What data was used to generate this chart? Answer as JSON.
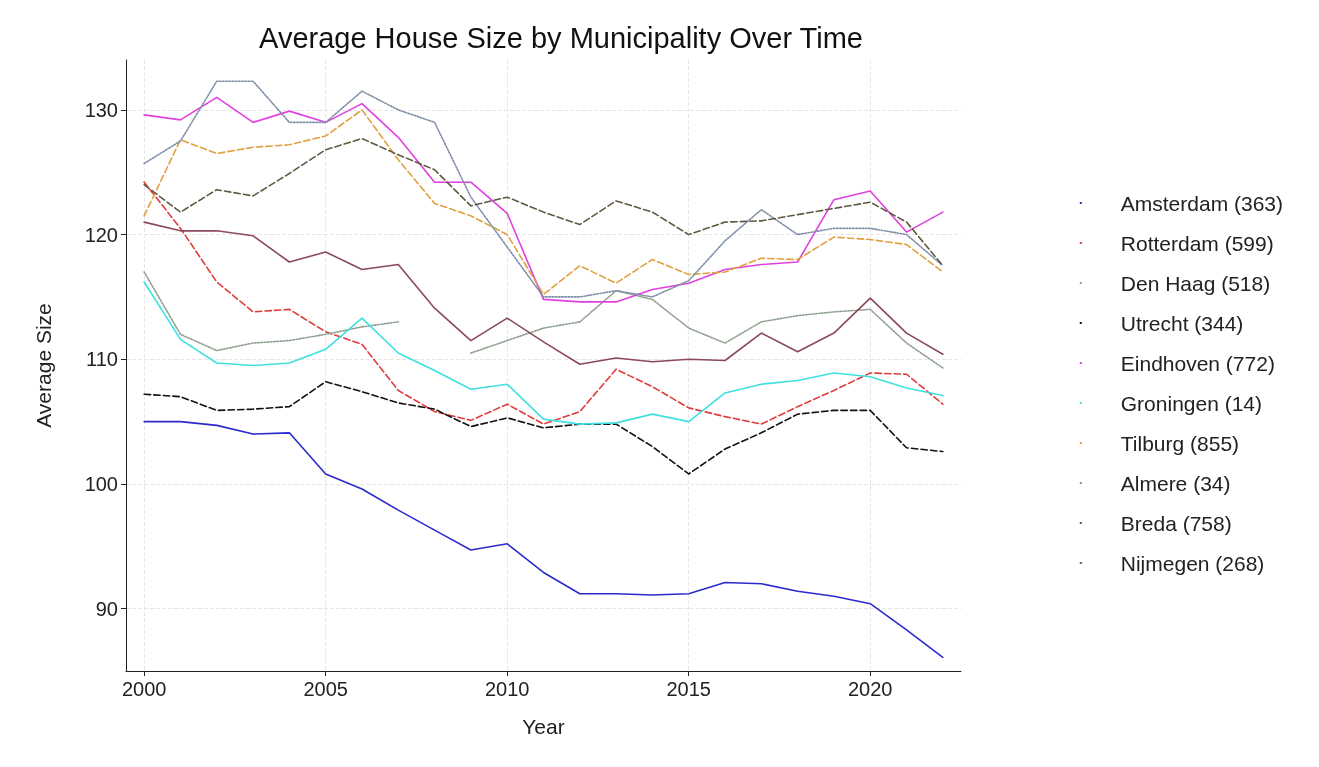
{
  "chart_data": {
    "type": "line",
    "title": "Average House Size by Municipality Over Time",
    "xlabel": "Year",
    "ylabel": "Average Size",
    "x": [
      2000,
      2001,
      2002,
      2003,
      2004,
      2005,
      2006,
      2007,
      2008,
      2009,
      2010,
      2011,
      2012,
      2013,
      2014,
      2015,
      2016,
      2017,
      2018,
      2019,
      2020,
      2021,
      2022
    ],
    "xlim": [
      1999.5,
      2022.5
    ],
    "xticks": [
      2000,
      2005,
      2010,
      2015,
      2020
    ],
    "ylim": [
      85,
      134
    ],
    "yticks": [
      90,
      100,
      110,
      120,
      130
    ],
    "grid": true,
    "legend": "right",
    "marker": "none",
    "series": [
      {
        "name": "Amsterdam (363)",
        "color": "#2b2bcc",
        "line_style": "solid",
        "values": [
          105,
          105,
          104.7,
          104,
          104.1,
          100.8,
          99.6,
          97.9,
          96.3,
          94.7,
          95.2,
          92.9,
          91.2,
          91.2,
          91.1,
          91.2,
          92.1,
          92,
          91.4,
          91,
          90.4,
          88.3,
          86.1
        ]
      },
      {
        "name": "Rotterdam (599)",
        "color": "#e03c3c",
        "line_style": "dashed",
        "values": [
          124.2,
          120.5,
          116.2,
          113.8,
          114,
          112.2,
          111.2,
          107.5,
          105.8,
          105.1,
          106.4,
          104.8,
          105.8,
          109.2,
          107.8,
          106.1,
          105.4,
          104.8,
          106.2,
          107.5,
          108.9,
          108.8,
          106.4
        ]
      },
      {
        "name": "Den Haag (518)",
        "color": "#8fa08f",
        "line_style": "dotted",
        "values": [
          117,
          112,
          110.7,
          111.3,
          111.5,
          112,
          112.6,
          113,
          null,
          110.5,
          111.5,
          112.5,
          113,
          115.5,
          114.8,
          112.5,
          111.3,
          113,
          113.5,
          113.8,
          114,
          111.3,
          109.3
        ]
      },
      {
        "name": "Utrecht (344)",
        "color": "#111111",
        "line_style": "dashed",
        "values": [
          107.2,
          107,
          105.9,
          106,
          106.2,
          108.2,
          107.4,
          106.5,
          106,
          104.6,
          105.3,
          104.5,
          104.8,
          104.8,
          103,
          100.8,
          102.8,
          104.1,
          105.6,
          105.9,
          105.9,
          102.9,
          102.6
        ]
      },
      {
        "name": "Eindhoven (772)",
        "color": "#e040e0",
        "line_style": "solid",
        "values": [
          129.6,
          129.2,
          131,
          129,
          129.9,
          129,
          130.5,
          127.8,
          124.2,
          124.2,
          121.7,
          114.8,
          114.6,
          114.6,
          115.6,
          116.1,
          117.2,
          117.6,
          117.8,
          122.8,
          123.5,
          120.2,
          121.8
        ]
      },
      {
        "name": "Groningen (14)",
        "color": "#40e0e0",
        "line_style": "solid",
        "values": [
          116.2,
          111.6,
          109.7,
          109.5,
          109.7,
          110.8,
          113.3,
          110.5,
          109.1,
          107.6,
          108,
          105.2,
          104.8,
          104.9,
          105.6,
          105,
          107.3,
          108,
          108.3,
          108.9,
          108.6,
          107.7,
          107.1
        ]
      },
      {
        "name": "Tilburg (855)",
        "color": "#e0a040",
        "line_style": "dashed",
        "values": [
          121.5,
          127.6,
          126.5,
          127,
          127.2,
          127.9,
          130,
          126,
          122.5,
          121.5,
          120,
          115.2,
          117.5,
          116.1,
          118,
          116.8,
          117,
          118.1,
          118,
          119.8,
          119.6,
          119.2,
          117
        ]
      },
      {
        "name": "Almere (34)",
        "color": "#7f8fa8",
        "line_style": "dotted",
        "values": [
          125.7,
          127.5,
          132.3,
          132.3,
          129,
          129,
          131.5,
          130,
          129,
          123,
          119,
          115,
          115,
          115.5,
          115,
          116.3,
          119.5,
          122,
          120,
          120.5,
          120.5,
          120,
          117.5
        ]
      },
      {
        "name": "Breda (758)",
        "color": "#605840",
        "line_style": "dashed",
        "values": [
          124,
          121.8,
          123.6,
          123.1,
          124.9,
          126.8,
          127.7,
          126.4,
          125.2,
          122.3,
          123,
          121.8,
          120.8,
          122.7,
          121.8,
          120,
          121,
          121.1,
          121.6,
          122.1,
          122.6,
          121,
          117.5
        ]
      },
      {
        "name": "Nijmegen (268)",
        "color": "#8b4a5a",
        "line_style": "solid",
        "values": [
          121,
          120.3,
          120.3,
          119.9,
          117.8,
          118.6,
          117.2,
          117.6,
          114.1,
          111.5,
          113.3,
          111.4,
          109.6,
          110.1,
          109.8,
          110,
          109.9,
          112.1,
          110.6,
          112.1,
          114.9,
          112.1,
          110.4
        ]
      }
    ]
  }
}
